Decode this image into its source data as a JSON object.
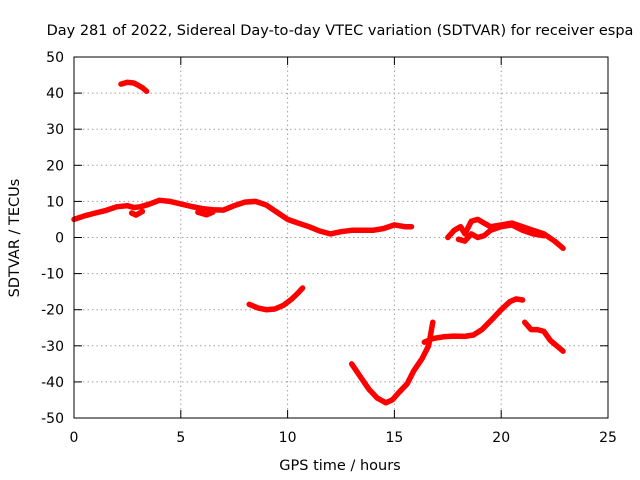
{
  "chart_data": {
    "type": "line",
    "title": "Day 281 of 2022, Sidereal Day-to-day VTEC variation (SDTVAR) for receiver espa",
    "xlabel": "GPS time / hours",
    "ylabel": "SDTVAR / TECUs",
    "xlim": [
      0,
      25
    ],
    "ylim": [
      -50,
      50
    ],
    "xticks": [
      0,
      5,
      10,
      15,
      20,
      25
    ],
    "yticks": [
      -50,
      -40,
      -30,
      -20,
      -10,
      0,
      10,
      20,
      30,
      40,
      50
    ],
    "grid": true,
    "legend": "none",
    "series_color": "#ff0000",
    "series": [
      {
        "name": "segment-1",
        "x": [
          2.2,
          2.5,
          2.8,
          3.0,
          3.2,
          3.4
        ],
        "y": [
          42.5,
          43.0,
          42.8,
          42.2,
          41.5,
          40.5
        ]
      },
      {
        "name": "segment-2",
        "x": [
          0.0,
          0.5,
          1.0,
          1.5,
          2.0,
          2.5,
          2.8,
          3.1,
          3.5,
          4.0,
          4.5,
          5.0,
          5.5,
          6.0,
          6.5,
          7.0,
          7.5,
          8.0,
          8.5,
          9.0,
          9.5,
          10.0,
          10.5,
          11.0,
          11.5,
          12.0,
          12.5,
          13.0,
          13.5,
          14.0,
          14.5,
          15.0,
          15.5,
          15.8
        ],
        "y": [
          5.0,
          6.0,
          6.8,
          7.5,
          8.5,
          8.8,
          8.3,
          8.5,
          9.2,
          10.3,
          10.0,
          9.3,
          8.6,
          8.0,
          7.7,
          7.6,
          8.8,
          9.8,
          10.0,
          9.0,
          7.0,
          5.0,
          4.0,
          3.0,
          1.8,
          1.0,
          1.6,
          2.0,
          2.0,
          2.0,
          2.5,
          3.5,
          3.0,
          3.0
        ]
      },
      {
        "name": "segment-3",
        "x": [
          2.7,
          2.9,
          3.2
        ],
        "y": [
          6.8,
          6.2,
          7.2
        ]
      },
      {
        "name": "segment-4",
        "x": [
          5.8,
          6.2,
          6.5
        ],
        "y": [
          7.0,
          6.3,
          7.0
        ]
      },
      {
        "name": "segment-5",
        "x": [
          17.5,
          17.8,
          18.1,
          18.3,
          18.6,
          18.9,
          19.2,
          19.5,
          20.0,
          20.5,
          21.0,
          21.5,
          22.0,
          22.5,
          22.9
        ],
        "y": [
          0.0,
          2.0,
          3.0,
          1.0,
          4.5,
          5.0,
          4.0,
          3.0,
          3.5,
          4.0,
          3.0,
          2.0,
          1.0,
          -1.0,
          -3.0
        ]
      },
      {
        "name": "segment-6",
        "x": [
          18.0,
          18.3,
          18.6,
          18.9,
          19.2,
          19.5,
          20.0,
          20.5,
          21.0,
          21.5,
          22.0
        ],
        "y": [
          -0.5,
          -1.0,
          1.0,
          0.0,
          0.5,
          2.0,
          3.0,
          3.5,
          2.0,
          1.0,
          0.5
        ]
      },
      {
        "name": "segment-7",
        "x": [
          8.2,
          8.6,
          9.0,
          9.4,
          9.8,
          10.2,
          10.5,
          10.7
        ],
        "y": [
          -18.5,
          -19.5,
          -20.0,
          -19.8,
          -18.8,
          -17.0,
          -15.3,
          -14.0
        ]
      },
      {
        "name": "segment-8",
        "x": [
          13.0,
          13.4,
          13.8,
          14.2,
          14.6,
          14.9,
          15.2,
          15.6,
          15.9,
          16.3,
          16.6,
          16.8
        ],
        "y": [
          -35.0,
          -38.5,
          -42.0,
          -44.5,
          -45.8,
          -45.0,
          -43.0,
          -40.5,
          -37.0,
          -33.5,
          -30.0,
          -23.5
        ]
      },
      {
        "name": "segment-9",
        "x": [
          16.4,
          16.8,
          17.3,
          17.8,
          18.3,
          18.7,
          19.1,
          19.6,
          20.0,
          20.4,
          20.7,
          21.0
        ],
        "y": [
          -29.0,
          -28.0,
          -27.5,
          -27.3,
          -27.4,
          -27.0,
          -25.5,
          -22.5,
          -20.0,
          -17.8,
          -17.0,
          -17.3
        ]
      },
      {
        "name": "segment-10",
        "x": [
          21.1,
          21.4,
          21.7,
          22.0,
          22.3,
          22.6,
          22.9
        ],
        "y": [
          -23.5,
          -25.5,
          -25.5,
          -26.0,
          -28.5,
          -30.0,
          -31.5
        ]
      }
    ]
  }
}
